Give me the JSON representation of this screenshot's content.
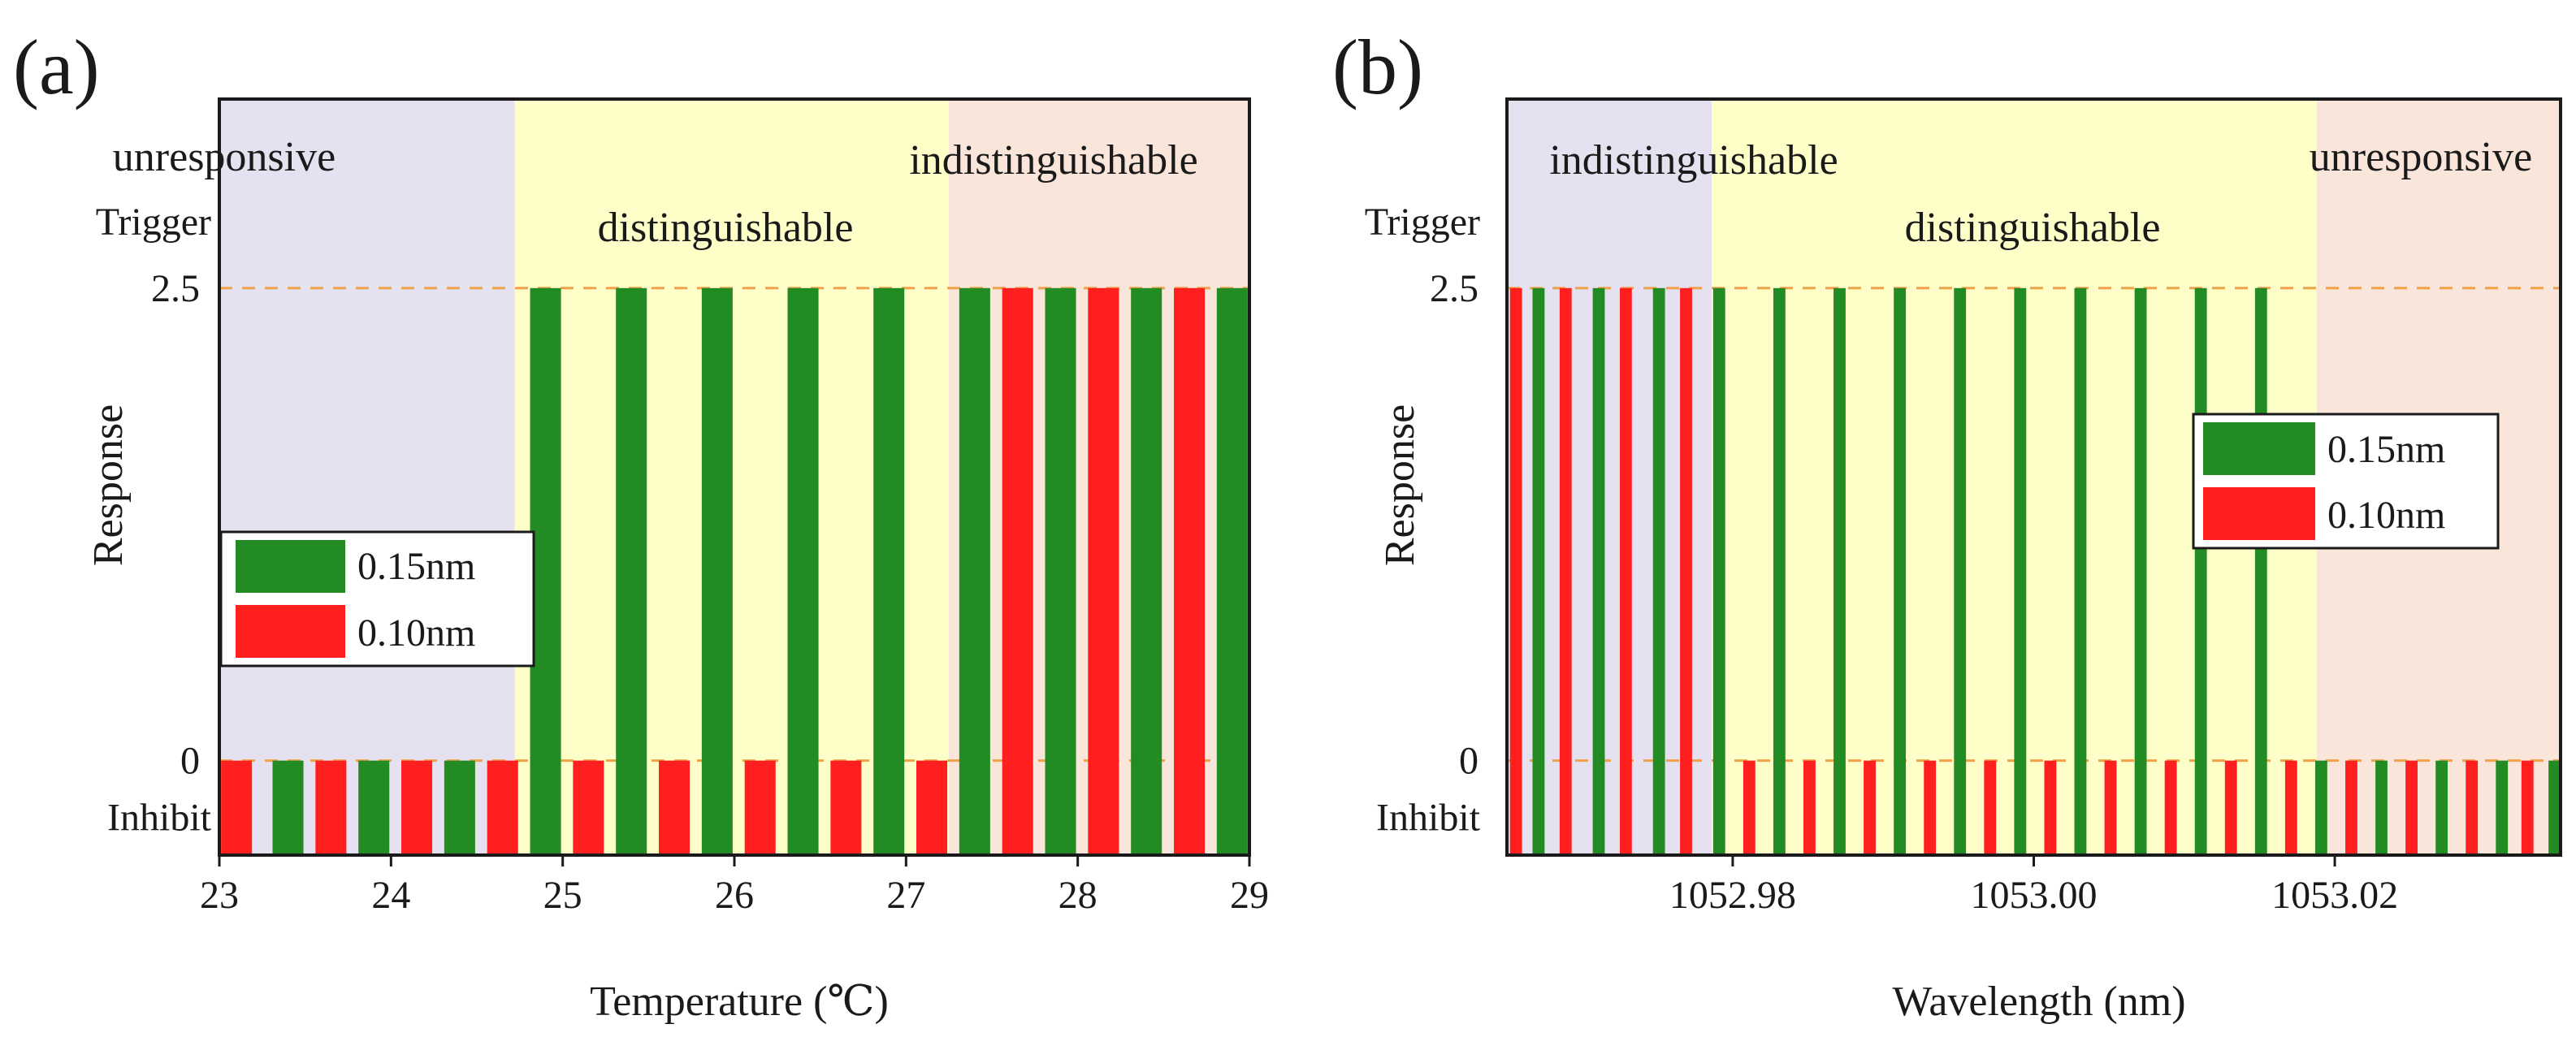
{
  "colors": {
    "green": "#238B23",
    "red": "#FF1F1F",
    "region_purple": "#E6E1F0",
    "region_yellow": "#FEFEC8",
    "region_peach": "#F9E5DA",
    "dashed_line": "#F0A24A",
    "axis": "#1a1a1a"
  },
  "chart_data": [
    {
      "panel_label": "(a)",
      "type": "bar",
      "xlabel": "Temperature (℃)",
      "ylabel": "Response",
      "y_levels": {
        "trigger_value": 2.5,
        "inhibit_value": 0,
        "trigger_label": "Trigger",
        "inhibit_label": "Inhibit",
        "trigger_tick": "2.5",
        "inhibit_tick": "0"
      },
      "xlim": [
        23,
        29
      ],
      "ylim": [
        -0.5,
        3.5
      ],
      "xticks": [
        23,
        24,
        25,
        26,
        27,
        28,
        29
      ],
      "xtick_labels": [
        "23",
        "24",
        "25",
        "26",
        "27",
        "28",
        "29"
      ],
      "regions": [
        {
          "label": "unresponsive",
          "x_start": 23,
          "x_end": 24.72,
          "color_key": "region_purple"
        },
        {
          "label": "distinguishable",
          "x_start": 24.72,
          "x_end": 27.25,
          "color_key": "region_yellow"
        },
        {
          "label": "indistinguishable",
          "x_start": 27.25,
          "x_end": 29,
          "color_key": "region_peach"
        }
      ],
      "legend": {
        "position": "middle-left",
        "entries": [
          {
            "label": "0.15nm",
            "series": "green"
          },
          {
            "label": "0.10nm",
            "series": "red"
          }
        ]
      },
      "bar_width": 0.18,
      "series": [
        {
          "name": "0.15nm",
          "color_key": "green",
          "x": [
            23.4,
            23.9,
            24.4,
            24.9,
            25.4,
            25.9,
            26.4,
            26.9,
            27.4,
            27.9,
            28.4,
            28.9
          ],
          "values": [
            0,
            0,
            0,
            2.5,
            2.5,
            2.5,
            2.5,
            2.5,
            2.5,
            2.5,
            2.5,
            2.5
          ]
        },
        {
          "name": "0.10nm",
          "color_key": "red",
          "x": [
            23.1,
            23.65,
            24.15,
            24.65,
            25.15,
            25.65,
            26.15,
            26.65,
            27.15,
            27.65,
            28.15,
            28.65
          ],
          "values": [
            0,
            0,
            0,
            0,
            0,
            0,
            0,
            0,
            0,
            2.5,
            2.5,
            2.5
          ]
        }
      ]
    },
    {
      "panel_label": "(b)",
      "type": "bar",
      "xlabel": "Wavelength (nm)",
      "ylabel": "Response",
      "y_levels": {
        "trigger_value": 2.5,
        "inhibit_value": 0,
        "trigger_label": "Trigger",
        "inhibit_label": "Inhibit",
        "trigger_tick": "2.5",
        "inhibit_tick": "0"
      },
      "xlim": [
        1052.965,
        1053.035
      ],
      "ylim": [
        -0.5,
        3.5
      ],
      "xticks": [
        1052.98,
        1053.0,
        1053.02
      ],
      "xtick_labels": [
        "1052.98",
        "1053.00",
        "1053.02"
      ],
      "regions": [
        {
          "label": "indistinguishable",
          "x_start": 1052.965,
          "x_end": 1052.9786,
          "color_key": "region_purple"
        },
        {
          "label": "distinguishable",
          "x_start": 1052.9786,
          "x_end": 1053.0188,
          "color_key": "region_yellow"
        },
        {
          "label": "unresponsive",
          "x_start": 1053.0188,
          "x_end": 1053.035,
          "color_key": "region_peach"
        }
      ],
      "legend": {
        "position": "middle-right",
        "entries": [
          {
            "label": "0.15nm",
            "series": "green"
          },
          {
            "label": "0.10nm",
            "series": "red"
          }
        ]
      },
      "bar_width": 0.0008,
      "series": [
        {
          "name": "0.15nm",
          "color_key": "green",
          "x": [
            1052.9671,
            1052.9711,
            1052.9751,
            1052.9791,
            1052.9831,
            1052.9871,
            1052.9911,
            1052.9951,
            1052.9991,
            1053.0031,
            1053.0071,
            1053.0111,
            1053.0151,
            1053.0191,
            1053.0231,
            1053.0271,
            1053.0311,
            1053.0346
          ],
          "values": [
            2.5,
            2.5,
            2.5,
            2.5,
            2.5,
            2.5,
            2.5,
            2.5,
            2.5,
            2.5,
            2.5,
            2.5,
            2.5,
            0,
            0,
            0,
            0,
            0
          ]
        },
        {
          "name": "0.10nm",
          "color_key": "red",
          "x": [
            1052.9656,
            1052.9689,
            1052.9729,
            1052.9769,
            1052.9811,
            1052.9851,
            1052.9891,
            1052.9931,
            1052.9971,
            1053.0011,
            1053.0051,
            1053.0091,
            1053.0131,
            1053.0171,
            1053.0211,
            1053.0251,
            1053.0291,
            1053.0328
          ],
          "values": [
            2.5,
            2.5,
            2.5,
            2.5,
            0,
            0,
            0,
            0,
            0,
            0,
            0,
            0,
            0,
            0,
            0,
            0,
            0,
            0
          ]
        }
      ]
    }
  ]
}
